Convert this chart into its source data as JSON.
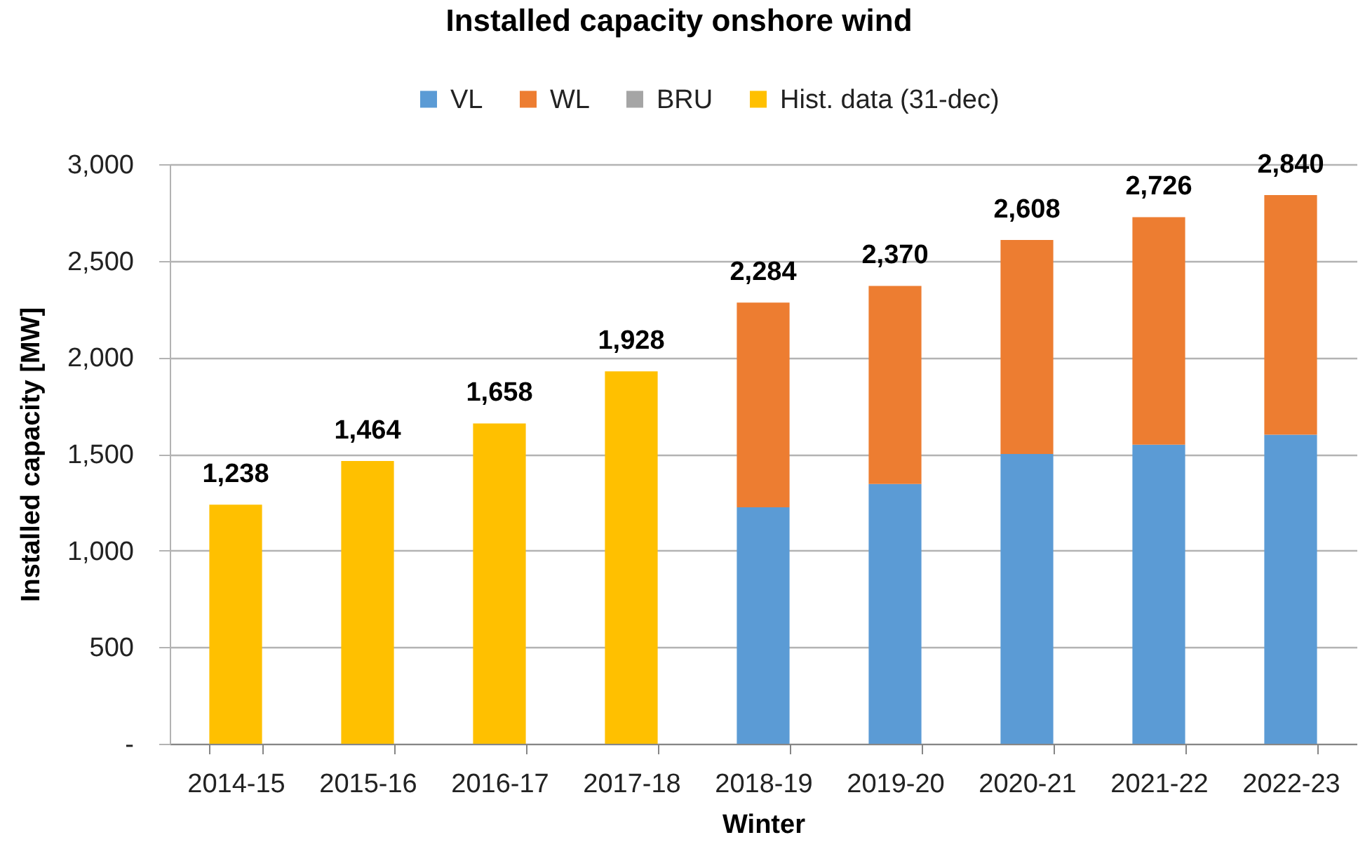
{
  "chart_data": {
    "type": "bar",
    "title": "Installed capacity onshore wind",
    "xlabel": "Winter",
    "ylabel": "Installed capacity [MW]",
    "categories": [
      "2014-15",
      "2015-16",
      "2016-17",
      "2017-18",
      "2018-19",
      "2019-20",
      "2020-21",
      "2021-22",
      "2022-23"
    ],
    "series": [
      {
        "name": "VL",
        "color": "#5b9bd5",
        "values": [
          null,
          null,
          null,
          null,
          1224,
          1345,
          1500,
          1548,
          1600
        ]
      },
      {
        "name": "WL",
        "color": "#ed7d31",
        "values": [
          null,
          null,
          null,
          null,
          1060,
          1025,
          1108,
          1178,
          1240
        ]
      },
      {
        "name": "BRU",
        "color": "#a5a5a5",
        "values": [
          null,
          null,
          null,
          null,
          null,
          null,
          null,
          null,
          null
        ]
      },
      {
        "name": "Hist. data (31-dec)",
        "color": "#ffc000",
        "values": [
          1238,
          1464,
          1658,
          1928,
          null,
          null,
          null,
          null,
          null
        ]
      }
    ],
    "stacked": true,
    "totals": [
      "1,238",
      "1,464",
      "1,658",
      "1,928",
      "2,284",
      "2,370",
      "2,608",
      "2,726",
      "2,840"
    ],
    "ylim": [
      0,
      3000
    ],
    "yticks": [
      {
        "value": 0,
        "label": "-"
      },
      500,
      {
        "value": 1000,
        "label": "1,000"
      },
      {
        "value": 1500,
        "label": "1,500"
      },
      {
        "value": 2000,
        "label": "2,000"
      },
      {
        "value": 2500,
        "label": "2,500"
      },
      {
        "value": 3000,
        "label": "3,000"
      }
    ],
    "grid": "y",
    "legend": "top"
  }
}
